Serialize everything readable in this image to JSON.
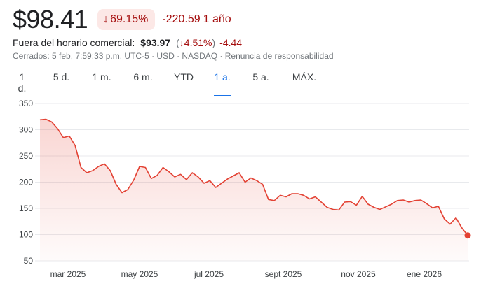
{
  "quote": {
    "price": "$98.41",
    "change_arrow": "↓",
    "change_pct": "69.15%",
    "change_abs": "-220.59",
    "period": "1 año"
  },
  "after_hours": {
    "label": "Fuera del horario comercial:",
    "price": "$93.97",
    "paren_open": "(",
    "arrow": "↓",
    "pct": "4.51%",
    "paren_close": ")",
    "abs": "-4.44"
  },
  "meta": "Cerrados: 5 feb, 7:59:33 p.m. UTC-5 · USD · NASDAQ · Renuncia de responsabilidad",
  "tabs": [
    {
      "label": "1 d.",
      "active": false
    },
    {
      "label": "5 d.",
      "active": false
    },
    {
      "label": "1 m.",
      "active": false
    },
    {
      "label": "6 m.",
      "active": false
    },
    {
      "label": "YTD",
      "active": false
    },
    {
      "label": "1 a.",
      "active": true
    },
    {
      "label": "5 a.",
      "active": false
    },
    {
      "label": "MÁX.",
      "active": false
    }
  ],
  "colors": {
    "line": "#e34234",
    "negative": "#a50e0e",
    "badge_bg": "#fce8e6",
    "active_tab": "#1a73e8"
  },
  "chart_data": {
    "type": "area",
    "ylim": [
      50,
      350
    ],
    "yticks": [
      350,
      300,
      250,
      200,
      150,
      100,
      50
    ],
    "xtick_labels": [
      "mar 2025",
      "may 2025",
      "jul 2025",
      "sept 2025",
      "nov 2025",
      "ene 2026"
    ],
    "x_dates": [
      "2025-02-05",
      "2025-02-10",
      "2025-02-15",
      "2025-02-20",
      "2025-02-25",
      "2025-03-02",
      "2025-03-07",
      "2025-03-12",
      "2025-03-17",
      "2025-03-22",
      "2025-03-27",
      "2025-04-01",
      "2025-04-06",
      "2025-04-11",
      "2025-04-16",
      "2025-04-21",
      "2025-04-26",
      "2025-05-01",
      "2025-05-06",
      "2025-05-11",
      "2025-05-16",
      "2025-05-21",
      "2025-05-26",
      "2025-05-31",
      "2025-06-05",
      "2025-06-10",
      "2025-06-15",
      "2025-06-20",
      "2025-06-25",
      "2025-06-30",
      "2025-07-05",
      "2025-07-10",
      "2025-07-15",
      "2025-07-20",
      "2025-07-25",
      "2025-07-30",
      "2025-08-04",
      "2025-08-09",
      "2025-08-14",
      "2025-08-19",
      "2025-08-24",
      "2025-08-29",
      "2025-09-03",
      "2025-09-08",
      "2025-09-13",
      "2025-09-18",
      "2025-09-23",
      "2025-09-28",
      "2025-10-03",
      "2025-10-08",
      "2025-10-13",
      "2025-10-18",
      "2025-10-23",
      "2025-10-28",
      "2025-11-02",
      "2025-11-07",
      "2025-11-12",
      "2025-11-17",
      "2025-11-22",
      "2025-11-27",
      "2025-12-02",
      "2025-12-07",
      "2025-12-12",
      "2025-12-17",
      "2025-12-22",
      "2025-12-27",
      "2026-01-01",
      "2026-01-06",
      "2026-01-11",
      "2026-01-16",
      "2026-01-21",
      "2026-01-26",
      "2026-01-31",
      "2026-02-05"
    ],
    "values": [
      319,
      320,
      315,
      302,
      285,
      288,
      270,
      228,
      218,
      222,
      230,
      235,
      222,
      196,
      180,
      186,
      204,
      230,
      228,
      207,
      213,
      228,
      220,
      210,
      215,
      205,
      218,
      210,
      198,
      203,
      190,
      198,
      206,
      212,
      218,
      200,
      208,
      203,
      196,
      167,
      165,
      175,
      172,
      178,
      178,
      175,
      168,
      172,
      162,
      152,
      148,
      147,
      162,
      163,
      156,
      173,
      158,
      152,
      148,
      153,
      158,
      165,
      166,
      162,
      165,
      166,
      159,
      151,
      154,
      130,
      120,
      132,
      113,
      98.41
    ]
  }
}
